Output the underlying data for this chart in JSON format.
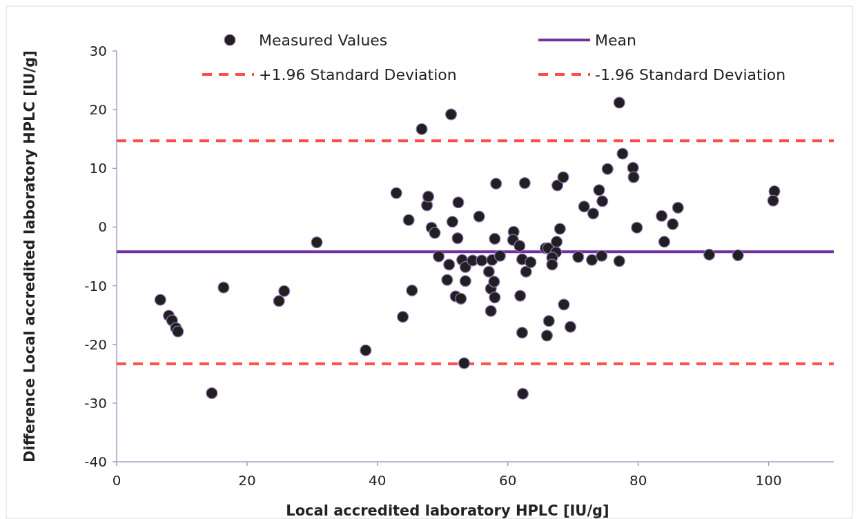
{
  "chart_data": {
    "type": "scatter",
    "xlabel": "Local accredited laboratory HPLC [IU/g]",
    "ylabel": "Difference Local accredited laboratory HPLC [IU/g]",
    "xlim": [
      0,
      110
    ],
    "xticks": [
      0,
      20,
      40,
      60,
      80,
      100
    ],
    "ylim": [
      -40,
      30
    ],
    "yticks": [
      -40,
      -30,
      -20,
      -10,
      0,
      10,
      20,
      30
    ],
    "grid": false,
    "legend": "top",
    "series": [
      {
        "name": "Measured Values",
        "color": "#231f20",
        "marker": "circle",
        "x": [
          6.7,
          8.0,
          8.5,
          9.1,
          9.4,
          14.6,
          16.4,
          24.9,
          25.7,
          30.7,
          38.2,
          42.9,
          43.9,
          45.3,
          44.8,
          46.8,
          47.6,
          47.8,
          48.3,
          48.8,
          49.4,
          51.0,
          50.7,
          51.3,
          51.5,
          52.0,
          52.8,
          52.3,
          52.4,
          53.0,
          53.5,
          53.5,
          53.3,
          54.6,
          55.6,
          56.0,
          57.1,
          57.4,
          57.4,
          57.6,
          57.9,
          58.0,
          58.0,
          58.2,
          58.8,
          60.9,
          60.8,
          61.8,
          62.2,
          61.9,
          62.2,
          62.6,
          62.3,
          62.8,
          63.5,
          65.8,
          66.2,
          67.5,
          67.4,
          66.8,
          66.8,
          68.0,
          67.6,
          68.5,
          66.3,
          66.0,
          68.6,
          69.6,
          70.8,
          71.7,
          73.1,
          72.9,
          74.0,
          74.5,
          74.4,
          75.3,
          77.1,
          77.6,
          77.1,
          79.2,
          79.3,
          79.8,
          83.6,
          84.0,
          85.3,
          86.1,
          90.9,
          95.3,
          100.9,
          100.7
        ],
        "values": [
          -12.4,
          -15.1,
          -15.9,
          -17.2,
          -17.8,
          -28.3,
          -10.3,
          -12.6,
          -10.9,
          -2.6,
          -21.0,
          5.8,
          -15.3,
          -10.8,
          1.2,
          16.7,
          3.7,
          5.2,
          -0.1,
          -1.0,
          -5.0,
          -6.4,
          -9.0,
          19.2,
          0.9,
          -11.8,
          -12.2,
          -1.9,
          4.2,
          -5.6,
          -6.8,
          -9.2,
          -23.2,
          -5.7,
          1.8,
          -5.7,
          -7.6,
          -14.3,
          -10.5,
          -5.6,
          -9.3,
          -12.0,
          -2.0,
          7.4,
          -4.9,
          -0.8,
          -2.2,
          -3.2,
          -18.0,
          -11.7,
          -5.5,
          7.5,
          -28.4,
          -7.6,
          -6.0,
          -3.6,
          -3.6,
          -2.5,
          -4.3,
          -5.2,
          -6.4,
          -0.3,
          7.1,
          8.5,
          -16.0,
          -18.5,
          -13.2,
          -17.0,
          -5.1,
          3.5,
          2.3,
          -5.6,
          6.3,
          4.4,
          -4.9,
          9.9,
          21.2,
          12.5,
          -5.8,
          10.1,
          8.5,
          -0.1,
          1.9,
          -2.5,
          0.5,
          3.3,
          -4.7,
          -4.8,
          6.1,
          4.5
        ]
      },
      {
        "name": "Mean",
        "type": "line",
        "color": "#7030a0",
        "line_style": "solid",
        "x": [
          0,
          110
        ],
        "values": [
          -4.2,
          -4.2
        ]
      },
      {
        "name": "+1.96 Standard Deviation",
        "type": "line",
        "color": "#ff4b4b",
        "line_style": "dashed",
        "x": [
          0,
          110
        ],
        "values": [
          14.7,
          14.7
        ]
      },
      {
        "name": "-1.96 Standard Deviation",
        "type": "line",
        "color": "#ff4b4b",
        "line_style": "dashed",
        "x": [
          0,
          110
        ],
        "values": [
          -23.3,
          -23.3
        ]
      }
    ]
  }
}
